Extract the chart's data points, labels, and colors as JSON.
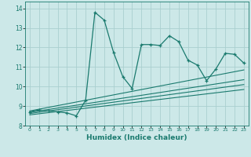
{
  "xlabel": "Humidex (Indice chaleur)",
  "xlim": [
    -0.5,
    23.5
  ],
  "ylim": [
    8.0,
    14.35
  ],
  "yticks": [
    8,
    9,
    10,
    11,
    12,
    13,
    14
  ],
  "xticks": [
    0,
    1,
    2,
    3,
    4,
    5,
    6,
    7,
    8,
    9,
    10,
    11,
    12,
    13,
    14,
    15,
    16,
    17,
    18,
    19,
    20,
    21,
    22,
    23
  ],
  "bg_color": "#cce8e8",
  "line_color": "#1a7a6e",
  "grid_color": "#aacfcf",
  "main_x": [
    0,
    1,
    2,
    3,
    4,
    5,
    6,
    7,
    8,
    9,
    10,
    11,
    12,
    13,
    14,
    15,
    16,
    17,
    18,
    19,
    20,
    21,
    22,
    23
  ],
  "main_y": [
    8.7,
    8.8,
    8.75,
    8.7,
    8.65,
    8.5,
    9.3,
    13.8,
    13.4,
    11.75,
    10.5,
    9.9,
    12.15,
    12.15,
    12.1,
    12.6,
    12.3,
    11.35,
    11.1,
    10.3,
    10.9,
    11.7,
    11.65,
    11.2
  ],
  "trend1_x": [
    0,
    23
  ],
  "trend1_y": [
    8.55,
    9.85
  ],
  "trend2_x": [
    0,
    23
  ],
  "trend2_y": [
    8.62,
    10.1
  ],
  "trend3_x": [
    0,
    23
  ],
  "trend3_y": [
    8.68,
    10.35
  ],
  "trend4_x": [
    0,
    23
  ],
  "trend4_y": [
    8.75,
    10.85
  ]
}
